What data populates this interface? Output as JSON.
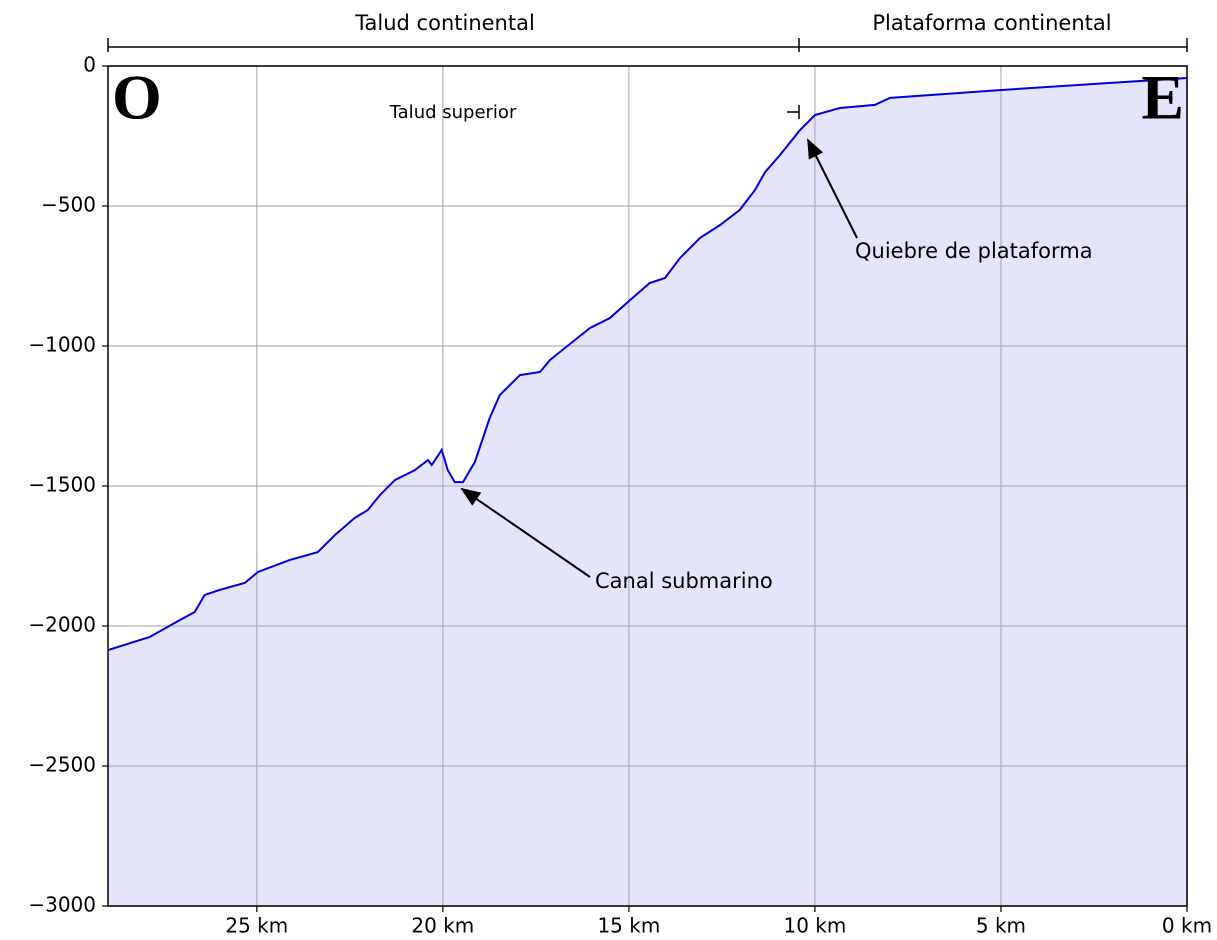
{
  "chart_data": {
    "type": "area",
    "regions": [
      "Talud continental",
      "Plataforma continental"
    ],
    "west_label": "O",
    "east_label": "E",
    "annotations": [
      "Talud superior",
      "Quiebre de plataforma",
      "Canal submarino"
    ],
    "x": [
      29,
      27.88,
      27.07,
      26.67,
      26.4,
      26.0,
      25.32,
      24.97,
      24.11,
      23.36,
      22.9,
      22.37,
      22.02,
      21.69,
      21.29,
      20.75,
      20.4,
      20.3,
      20.03,
      19.87,
      19.68,
      19.46,
      19.14,
      18.74,
      18.47,
      17.93,
      17.39,
      17.12,
      16.72,
      16.05,
      15.51,
      14.97,
      14.44,
      14.03,
      13.63,
      13.09,
      12.55,
      12.02,
      11.61,
      11.34,
      10.94,
      10.4,
      10.0,
      9.33,
      8.39,
      7.98,
      5.03,
      0
    ],
    "values": [
      -2086,
      -2039,
      -1979,
      -1950,
      -1889,
      -1871,
      -1846,
      -1807,
      -1764,
      -1736,
      -1675,
      -1614,
      -1586,
      -1532,
      -1479,
      -1443,
      -1407,
      -1425,
      -1371,
      -1443,
      -1486,
      -1486,
      -1414,
      -1257,
      -1175,
      -1104,
      -1093,
      -1050,
      -1007,
      -936,
      -900,
      -836,
      -775,
      -757,
      -686,
      -614,
      -568,
      -514,
      -443,
      -379,
      -318,
      -229,
      -175,
      -150,
      -139,
      -114,
      -86,
      -43
    ],
    "line_color": "#0000dd",
    "fill_color": "#e4e4fa",
    "xlim": [
      29,
      0
    ],
    "xticks": [
      {
        "value": 25,
        "label": "25 km"
      },
      {
        "value": 20,
        "label": "20 km"
      },
      {
        "value": 15,
        "label": "15 km"
      },
      {
        "value": 10,
        "label": "10 km"
      },
      {
        "value": 5,
        "label": "5 km"
      },
      {
        "value": 0,
        "label": "0 km"
      }
    ],
    "ylim": [
      -3000,
      0
    ],
    "yticks": [
      {
        "value": -3000,
        "label": "−3000"
      },
      {
        "value": -2500,
        "label": "−2500"
      },
      {
        "value": -2000,
        "label": "−2000"
      },
      {
        "value": -1500,
        "label": "−1500"
      },
      {
        "value": -1000,
        "label": "−1000"
      },
      {
        "value": -500,
        "label": "−500"
      },
      0
    ],
    "grid": true
  }
}
